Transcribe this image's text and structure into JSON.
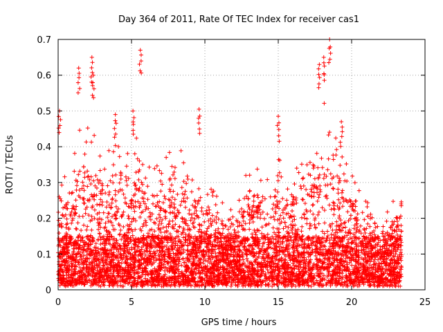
{
  "chart_data": {
    "type": "scatter",
    "title": "Day 364 of 2011, Rate Of TEC Index for receiver cas1",
    "xlabel": "GPS time / hours",
    "ylabel": "ROTI / TECUs",
    "xlim": [
      0,
      25
    ],
    "ylim": [
      0,
      0.7
    ],
    "xticks": [
      0,
      5,
      10,
      15,
      20,
      25
    ],
    "yticks": [
      0,
      0.1,
      0.2,
      0.3,
      0.4,
      0.5,
      0.6,
      0.7
    ],
    "xtick_labels": [
      "0",
      "5",
      "10",
      "15",
      "20",
      "25"
    ],
    "ytick_labels": [
      "0",
      "0.1",
      "0.2",
      "0.3",
      "0.4",
      "0.5",
      "0.6",
      "0.7"
    ],
    "grid": true,
    "marker": "plus",
    "color": "#ff0000",
    "x_range_of_data": [
      0,
      23.4
    ],
    "notable_points": [
      {
        "x": 0.1,
        "y": 0.5
      },
      {
        "x": 1.4,
        "y": 0.62
      },
      {
        "x": 2.3,
        "y": 0.65
      },
      {
        "x": 2.4,
        "y": 0.6
      },
      {
        "x": 3.9,
        "y": 0.49
      },
      {
        "x": 5.1,
        "y": 0.5
      },
      {
        "x": 5.6,
        "y": 0.67
      },
      {
        "x": 9.6,
        "y": 0.505
      },
      {
        "x": 15.0,
        "y": 0.485
      },
      {
        "x": 17.8,
        "y": 0.63
      },
      {
        "x": 18.1,
        "y": 0.65
      },
      {
        "x": 18.5,
        "y": 0.7
      },
      {
        "x": 19.3,
        "y": 0.47
      }
    ],
    "envelope": [
      {
        "x": 0.0,
        "y": 0.3
      },
      {
        "x": 0.5,
        "y": 0.32
      },
      {
        "x": 1.0,
        "y": 0.4
      },
      {
        "x": 1.5,
        "y": 0.45
      },
      {
        "x": 2.0,
        "y": 0.47
      },
      {
        "x": 2.5,
        "y": 0.48
      },
      {
        "x": 3.0,
        "y": 0.4
      },
      {
        "x": 3.5,
        "y": 0.4
      },
      {
        "x": 4.0,
        "y": 0.43
      },
      {
        "x": 4.5,
        "y": 0.44
      },
      {
        "x": 5.0,
        "y": 0.4
      },
      {
        "x": 5.5,
        "y": 0.45
      },
      {
        "x": 6.0,
        "y": 0.34
      },
      {
        "x": 6.5,
        "y": 0.37
      },
      {
        "x": 7.0,
        "y": 0.33
      },
      {
        "x": 7.5,
        "y": 0.4
      },
      {
        "x": 8.0,
        "y": 0.35
      },
      {
        "x": 8.5,
        "y": 0.41
      },
      {
        "x": 9.0,
        "y": 0.32
      },
      {
        "x": 9.5,
        "y": 0.3
      },
      {
        "x": 10.0,
        "y": 0.3
      },
      {
        "x": 10.5,
        "y": 0.31
      },
      {
        "x": 11.0,
        "y": 0.27
      },
      {
        "x": 11.5,
        "y": 0.26
      },
      {
        "x": 12.0,
        "y": 0.24
      },
      {
        "x": 12.5,
        "y": 0.3
      },
      {
        "x": 13.0,
        "y": 0.34
      },
      {
        "x": 13.5,
        "y": 0.36
      },
      {
        "x": 14.0,
        "y": 0.34
      },
      {
        "x": 14.5,
        "y": 0.32
      },
      {
        "x": 15.0,
        "y": 0.38
      },
      {
        "x": 15.5,
        "y": 0.31
      },
      {
        "x": 16.0,
        "y": 0.34
      },
      {
        "x": 16.5,
        "y": 0.4
      },
      {
        "x": 17.0,
        "y": 0.43
      },
      {
        "x": 17.5,
        "y": 0.47
      },
      {
        "x": 18.0,
        "y": 0.55
      },
      {
        "x": 18.5,
        "y": 0.48
      },
      {
        "x": 19.0,
        "y": 0.42
      },
      {
        "x": 19.5,
        "y": 0.4
      },
      {
        "x": 20.0,
        "y": 0.32
      },
      {
        "x": 20.5,
        "y": 0.33
      },
      {
        "x": 21.0,
        "y": 0.28
      },
      {
        "x": 21.5,
        "y": 0.26
      },
      {
        "x": 22.0,
        "y": 0.21
      },
      {
        "x": 22.5,
        "y": 0.22
      },
      {
        "x": 23.0,
        "y": 0.27
      },
      {
        "x": 23.4,
        "y": 0.28
      }
    ]
  }
}
